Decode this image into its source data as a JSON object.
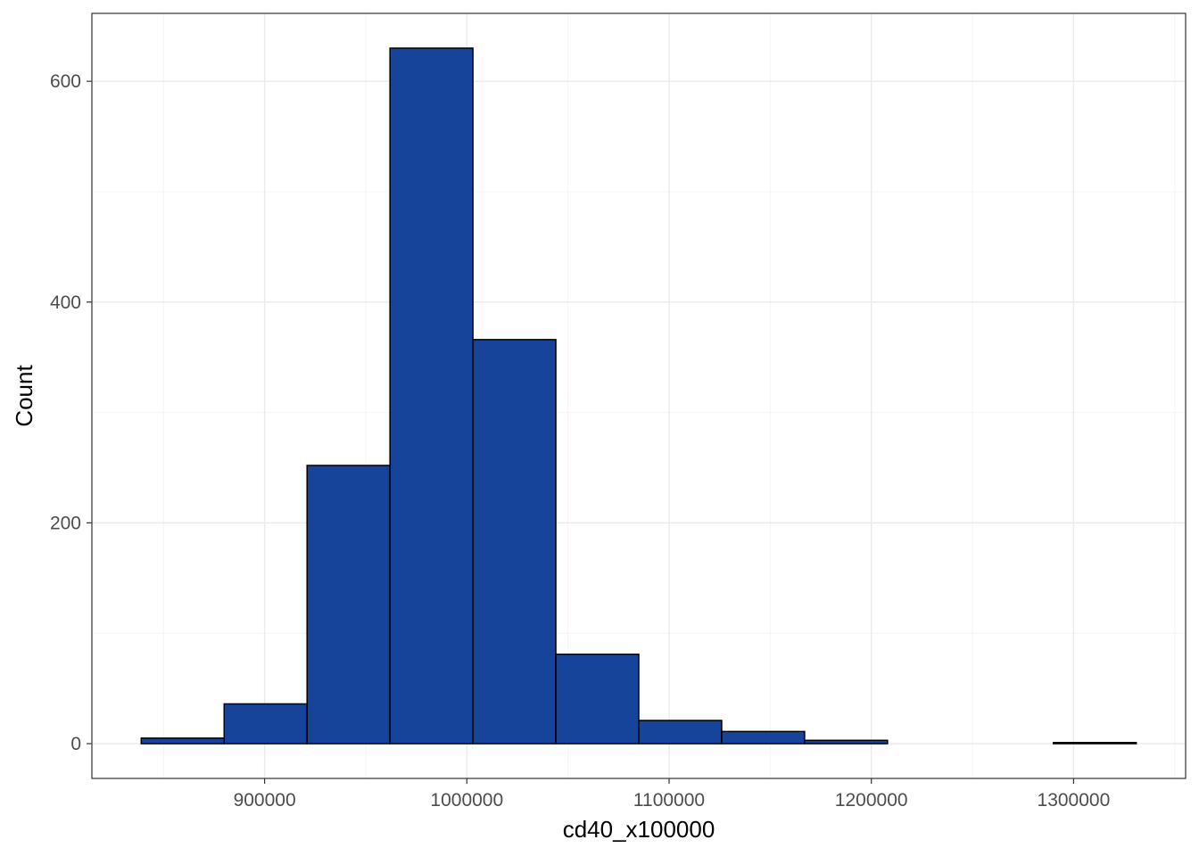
{
  "chart_data": {
    "type": "bar",
    "subtype": "histogram",
    "title": "",
    "xlabel": "cd40_x100000",
    "ylabel": "Count",
    "bins": [
      {
        "x0": 839000,
        "x1": 880000,
        "count": 5
      },
      {
        "x0": 880000,
        "x1": 921000,
        "count": 36
      },
      {
        "x0": 921000,
        "x1": 962000,
        "count": 252
      },
      {
        "x0": 962000,
        "x1": 1003000,
        "count": 630
      },
      {
        "x0": 1003000,
        "x1": 1044000,
        "count": 366
      },
      {
        "x0": 1044000,
        "x1": 1085000,
        "count": 81
      },
      {
        "x0": 1085000,
        "x1": 1126000,
        "count": 21
      },
      {
        "x0": 1126000,
        "x1": 1167000,
        "count": 11
      },
      {
        "x0": 1167000,
        "x1": 1208000,
        "count": 3
      },
      {
        "x0": 1208000,
        "x1": 1249000,
        "count": 0
      },
      {
        "x0": 1249000,
        "x1": 1290000,
        "count": 0
      },
      {
        "x0": 1290000,
        "x1": 1331000,
        "count": 1
      }
    ],
    "xticks": [
      900000,
      1000000,
      1100000,
      1200000,
      1300000
    ],
    "xtick_labels": [
      "900000",
      "1000000",
      "1100000",
      "1200000",
      "1300000"
    ],
    "yticks": [
      0,
      200,
      400,
      600
    ],
    "ytick_labels": [
      "0",
      "200",
      "400",
      "600"
    ],
    "xlim": [
      814600,
      1355400
    ],
    "ylim": [
      -31.5,
      661.5
    ],
    "grid": true,
    "legend": "none",
    "colors": {
      "bar_fill": "#17449B",
      "bar_stroke": "#000000",
      "grid_major": "#EBEBEB",
      "grid_minor": "#F4F4F4",
      "panel_border": "#333333",
      "tick_text": "#4D4D4D"
    }
  }
}
